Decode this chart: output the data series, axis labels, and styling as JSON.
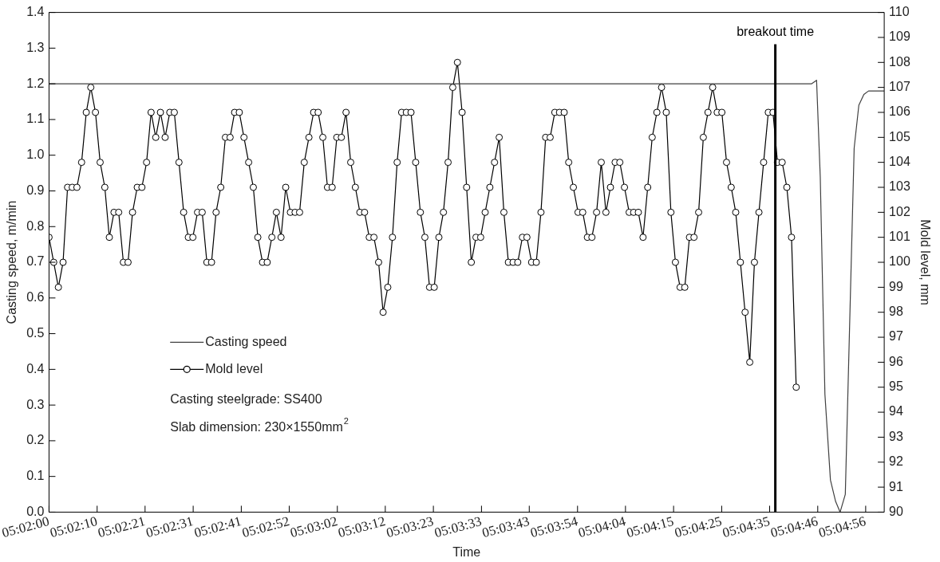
{
  "chart_data": {
    "type": "line",
    "xlabel": "Time",
    "ylabel": "Casting speed, m/min",
    "y2label": "Mold level, mm",
    "xlim": [
      5.03333,
      5.08333
    ],
    "xticks": [
      {
        "value": 5.03333,
        "label": "05:02:00"
      },
      {
        "value": 5.03621,
        "label": "05:02:10"
      },
      {
        "value": 5.03908,
        "label": "05:02:21"
      },
      {
        "value": 5.04196,
        "label": "05:02:31"
      },
      {
        "value": 5.04484,
        "label": "05:02:41"
      },
      {
        "value": 5.04771,
        "label": "05:02:52"
      },
      {
        "value": 5.05059,
        "label": "05:03:02"
      },
      {
        "value": 5.05346,
        "label": "05:03:12"
      },
      {
        "value": 5.05634,
        "label": "05:03:23"
      },
      {
        "value": 5.05922,
        "label": "05:03:33"
      },
      {
        "value": 5.06208,
        "label": "05:03:43"
      },
      {
        "value": 5.06497,
        "label": "05:03:54"
      },
      {
        "value": 5.06784,
        "label": "05:04:04"
      },
      {
        "value": 5.07072,
        "label": "05:04:15"
      },
      {
        "value": 5.0736,
        "label": "05:04:25"
      },
      {
        "value": 5.07647,
        "label": "05:04:35"
      },
      {
        "value": 5.07935,
        "label": "05:04:46"
      },
      {
        "value": 5.08222,
        "label": "05:04:56"
      }
    ],
    "ylim": [
      0,
      1.4
    ],
    "yticks": [
      {
        "value": 0,
        "label": "0.0"
      },
      0.1,
      0.2,
      0.3,
      0.4,
      0.5,
      0.6,
      0.7,
      0.8,
      0.9,
      {
        "value": 1,
        "label": "1.0"
      },
      1.1,
      1.2,
      1.3,
      1.4
    ],
    "y2lim": [
      90,
      110
    ],
    "y2ticks": [
      90,
      91,
      92,
      93,
      94,
      95,
      96,
      97,
      98,
      99,
      100,
      101,
      102,
      103,
      104,
      105,
      106,
      107,
      108,
      109,
      110
    ],
    "grid": false,
    "legend": "bottom left",
    "series": [
      {
        "name": "Casting speed",
        "marker": "none",
        "color": "#404040",
        "x": [
          5.03333,
          5.07897,
          5.07928,
          5.0795,
          5.07978,
          5.08011,
          5.08042,
          5.08069,
          5.081,
          5.08153,
          5.08181,
          5.08211,
          5.08239,
          5.08333
        ],
        "values": [
          1.2,
          1.2,
          1.21,
          0.94,
          0.33,
          0.09,
          0.03,
          0,
          0.05,
          1.02,
          1.14,
          1.17,
          1.18,
          1.18
        ]
      },
      {
        "name": "Mold level",
        "marker": "circle",
        "axis": "y2",
        "color": "#000000",
        "x": [
          5.03333,
          5.03361,
          5.03389,
          5.03417,
          5.03444,
          5.03472,
          5.035,
          5.03528,
          5.03556,
          5.03583,
          5.03611,
          5.03639,
          5.03667,
          5.03694,
          5.03722,
          5.0375,
          5.03778,
          5.03806,
          5.03833,
          5.03861,
          5.03889,
          5.03917,
          5.03944,
          5.03972,
          5.04,
          5.04028,
          5.04056,
          5.04083,
          5.04111,
          5.04139,
          5.04167,
          5.04194,
          5.04222,
          5.0425,
          5.04278,
          5.04306,
          5.04333,
          5.04361,
          5.04389,
          5.04417,
          5.04444,
          5.04472,
          5.045,
          5.04528,
          5.04556,
          5.04583,
          5.04611,
          5.04639,
          5.04667,
          5.04694,
          5.04722,
          5.0475,
          5.04778,
          5.04806,
          5.04833,
          5.04861,
          5.04889,
          5.04917,
          5.04944,
          5.04972,
          5.05,
          5.05028,
          5.05056,
          5.05083,
          5.05111,
          5.05139,
          5.05167,
          5.05194,
          5.05222,
          5.0525,
          5.05278,
          5.05306,
          5.05333,
          5.05361,
          5.05389,
          5.05417,
          5.05444,
          5.05472,
          5.055,
          5.05528,
          5.05556,
          5.05583,
          5.05611,
          5.05639,
          5.05667,
          5.05694,
          5.05722,
          5.0575,
          5.05778,
          5.05806,
          5.05833,
          5.05861,
          5.05889,
          5.05917,
          5.05944,
          5.05972,
          5.06,
          5.06028,
          5.06056,
          5.06083,
          5.06111,
          5.06139,
          5.06167,
          5.06194,
          5.06222,
          5.0625,
          5.06278,
          5.06306,
          5.06333,
          5.06361,
          5.06389,
          5.06417,
          5.06444,
          5.06472,
          5.065,
          5.06528,
          5.06556,
          5.06583,
          5.06611,
          5.06639,
          5.06667,
          5.06694,
          5.06722,
          5.0675,
          5.06778,
          5.06806,
          5.06833,
          5.06861,
          5.06889,
          5.06917,
          5.06944,
          5.06972,
          5.07,
          5.07028,
          5.07056,
          5.07083,
          5.07111,
          5.07139,
          5.07167,
          5.07194,
          5.07222,
          5.0725,
          5.07278,
          5.07306,
          5.07333,
          5.07361,
          5.07389,
          5.07417,
          5.07444,
          5.07472,
          5.075,
          5.07528,
          5.07556,
          5.07583,
          5.07611,
          5.07639,
          5.07667,
          5.07694,
          5.07722,
          5.0775,
          5.07778,
          5.07806
        ],
        "values": [
          101,
          100,
          99,
          100,
          103,
          103,
          103,
          104,
          106,
          107,
          106,
          104,
          103,
          101,
          102,
          102,
          100,
          100,
          102,
          103,
          103,
          104,
          106,
          105,
          106,
          105,
          106,
          106,
          104,
          102,
          101,
          101,
          102,
          102,
          100,
          100,
          102,
          103,
          105,
          105,
          106,
          106,
          105,
          104,
          103,
          101,
          100,
          100,
          101,
          102,
          101,
          103,
          102,
          102,
          102,
          104,
          105,
          106,
          106,
          105,
          103,
          103,
          105,
          105,
          106,
          104,
          103,
          102,
          102,
          101,
          101,
          100,
          98,
          99,
          101,
          104,
          106,
          106,
          106,
          104,
          102,
          101,
          99,
          99,
          101,
          102,
          104,
          107,
          108,
          106,
          103,
          100,
          101,
          101,
          102,
          103,
          104,
          105,
          102,
          100,
          100,
          100,
          101,
          101,
          100,
          100,
          102,
          105,
          105,
          106,
          106,
          106,
          104,
          103,
          102,
          102,
          101,
          101,
          102,
          104,
          102,
          103,
          104,
          104,
          103,
          102,
          102,
          102,
          101,
          103,
          105,
          106,
          107,
          106,
          102,
          100,
          99,
          99,
          101,
          101,
          102,
          105,
          106,
          107,
          106,
          106,
          104,
          103,
          102,
          100,
          98,
          96,
          100,
          102,
          104,
          106,
          106,
          104,
          104,
          103,
          101,
          95
        ]
      }
    ],
    "ref_lines": [
      {
        "axis": "x",
        "value": 5.07681,
        "label": "breakout time",
        "color": "#000000"
      }
    ],
    "annotations": [
      "Casting steelgrade: SS400",
      "Slab dimension: 230×1550mm$^{2}$"
    ]
  }
}
